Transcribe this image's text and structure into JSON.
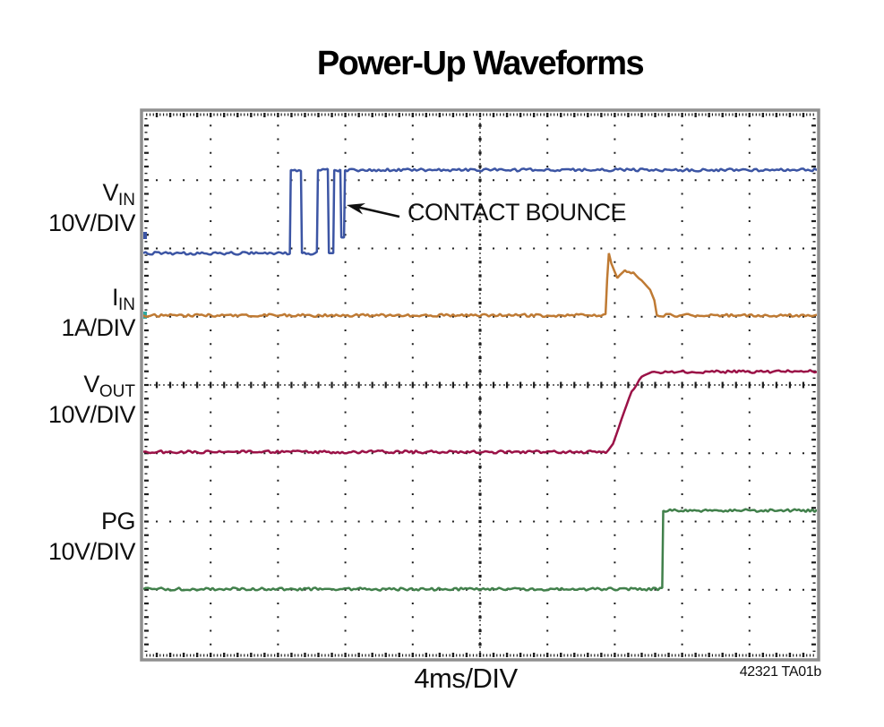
{
  "title": "Power-Up Waveforms",
  "annotation": {
    "text": "CONTACT BOUNCE"
  },
  "x_axis": {
    "label": "4ms/DIV"
  },
  "footnote": "42321 TA01b",
  "channels": [
    {
      "name": "V",
      "sub": "IN",
      "scale": "10V/DIV",
      "color": "#3c55a4"
    },
    {
      "name": "I",
      "sub": "IN",
      "scale": "1A/DIV",
      "color": "#bf7a33"
    },
    {
      "name": "V",
      "sub": "OUT",
      "scale": "10V/DIV",
      "color": "#9b1247"
    },
    {
      "name": "PG",
      "sub": "",
      "scale": "10V/DIV",
      "color": "#41804b"
    }
  ],
  "chart_data": {
    "type": "line",
    "title": "Power-Up Waveforms",
    "xlabel": "4ms/DIV",
    "x_units": "ms",
    "x_range": [
      0,
      40
    ],
    "divisions": {
      "x": 10,
      "y": 8
    },
    "y_units": "scope divisions from top of graticule",
    "grid": "dotted 10x8 oscilloscope graticule with center crosshair ticks",
    "legend_position": "left margin channel labels",
    "series": [
      {
        "name": "VIN",
        "label": "V_IN",
        "scale": "10V/DIV",
        "color": "#3c55a4",
        "marker_color": "#3c55a4",
        "annotation": "CONTACT BOUNCE",
        "points": [
          [
            0,
            2.07
          ],
          [
            8.7,
            2.07
          ],
          [
            8.76,
            0.85
          ],
          [
            9.36,
            0.85
          ],
          [
            9.42,
            2.07
          ],
          [
            10.31,
            2.07
          ],
          [
            10.37,
            0.85
          ],
          [
            10.96,
            0.85
          ],
          [
            11.02,
            2.07
          ],
          [
            11.28,
            2.07
          ],
          [
            11.34,
            0.85
          ],
          [
            11.7,
            0.85
          ],
          [
            11.76,
            1.84
          ],
          [
            11.92,
            1.84
          ],
          [
            11.98,
            0.85
          ],
          [
            40,
            0.85
          ]
        ]
      },
      {
        "name": "IIN",
        "label": "I_IN",
        "scale": "1A/DIV",
        "color": "#bf7a33",
        "marker_color": "#2fa8a0",
        "points": [
          [
            0,
            2.98
          ],
          [
            27.45,
            2.98
          ],
          [
            27.55,
            2.45
          ],
          [
            27.65,
            2.07
          ],
          [
            27.8,
            2.22
          ],
          [
            28.15,
            2.43
          ],
          [
            28.6,
            2.33
          ],
          [
            29.1,
            2.36
          ],
          [
            29.6,
            2.47
          ],
          [
            30.1,
            2.6
          ],
          [
            30.35,
            2.76
          ],
          [
            30.5,
            2.98
          ],
          [
            40,
            2.98
          ]
        ]
      },
      {
        "name": "VOUT",
        "label": "V_OUT",
        "scale": "10V/DIV",
        "color": "#9b1247",
        "marker_color": "#9b1247",
        "points": [
          [
            0,
            4.98
          ],
          [
            27.6,
            4.98
          ],
          [
            27.9,
            4.86
          ],
          [
            28.4,
            4.5
          ],
          [
            29.0,
            4.1
          ],
          [
            29.6,
            3.88
          ],
          [
            30.2,
            3.81
          ],
          [
            40,
            3.8
          ]
        ]
      },
      {
        "name": "PG",
        "label": "PG",
        "scale": "10V/DIV",
        "color": "#41804b",
        "marker_color": "#41804b",
        "points": [
          [
            0,
            6.99
          ],
          [
            30.82,
            6.99
          ],
          [
            30.88,
            5.84
          ],
          [
            40,
            5.84
          ]
        ]
      }
    ]
  }
}
